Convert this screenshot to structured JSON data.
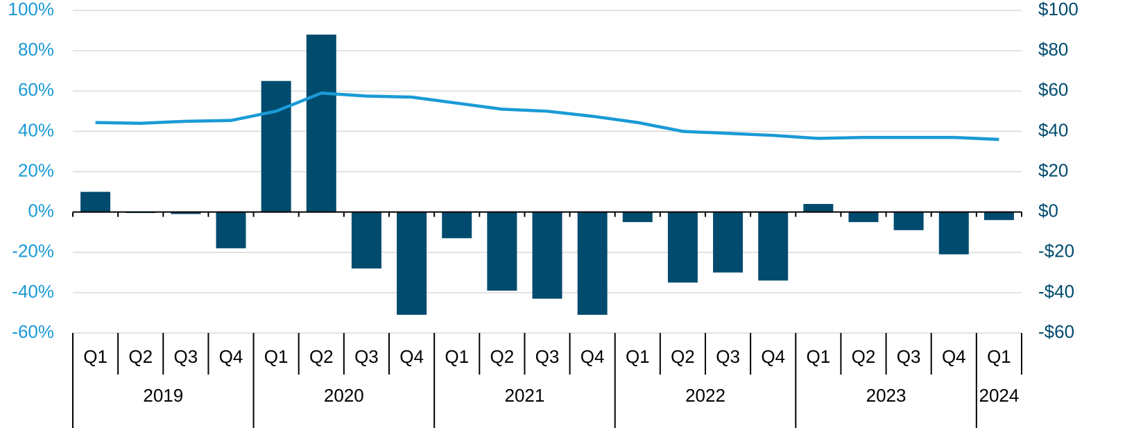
{
  "chart_data": {
    "type": "bar",
    "groups": [
      {
        "name": "2019",
        "categories": [
          "Q1",
          "Q2",
          "Q3",
          "Q4"
        ]
      },
      {
        "name": "2020",
        "categories": [
          "Q1",
          "Q2",
          "Q3",
          "Q4"
        ]
      },
      {
        "name": "2021",
        "categories": [
          "Q1",
          "Q2",
          "Q3",
          "Q4"
        ]
      },
      {
        "name": "2022",
        "categories": [
          "Q1",
          "Q2",
          "Q3",
          "Q4"
        ]
      },
      {
        "name": "2023",
        "categories": [
          "Q1",
          "Q2",
          "Q3",
          "Q4"
        ]
      },
      {
        "name": "2024",
        "categories": [
          "Q1"
        ]
      }
    ],
    "series": [
      {
        "type": "bar",
        "axis": "y2",
        "color": "#004b6e",
        "values": [
          10,
          -0.5,
          -1,
          -18,
          65,
          88,
          -28,
          -51,
          -13,
          -39,
          -43,
          -51,
          -5,
          -35,
          -30,
          -34,
          4,
          -5,
          -9,
          -21,
          -4
        ]
      },
      {
        "type": "line",
        "axis": "y",
        "color": "#1a9ad6",
        "values": [
          44.4,
          44,
          45,
          45.4,
          50,
          59,
          57.5,
          57,
          54,
          51,
          50,
          47.5,
          44.4,
          40,
          39,
          38,
          36.5,
          37,
          37,
          37,
          36
        ]
      }
    ],
    "ylim": [
      -60,
      100
    ],
    "yticks": [
      {
        "value": -60,
        "label": "-60%"
      },
      {
        "value": -40,
        "label": "-40%"
      },
      {
        "value": -20,
        "label": "-20%"
      },
      {
        "value": 0,
        "label": "0%"
      },
      {
        "value": 20,
        "label": "20%"
      },
      {
        "value": 40,
        "label": "40%"
      },
      {
        "value": 60,
        "label": "60%"
      },
      {
        "value": 80,
        "label": "80%"
      },
      {
        "value": 100,
        "label": "100%"
      }
    ],
    "y2lim": [
      -60,
      100
    ],
    "y2ticks": [
      {
        "value": -60,
        "label": "-$60"
      },
      {
        "value": -40,
        "label": "-$40"
      },
      {
        "value": -20,
        "label": "-$20"
      },
      {
        "value": 0,
        "label": "$0"
      },
      {
        "value": 20,
        "label": "$20"
      },
      {
        "value": 40,
        "label": "$40"
      },
      {
        "value": 60,
        "label": "$60"
      },
      {
        "value": 80,
        "label": "$80"
      },
      {
        "value": 100,
        "label": "$100"
      }
    ],
    "ytick_color": "#1a9ad6",
    "y2tick_color": "#004b6e",
    "grid": true
  }
}
